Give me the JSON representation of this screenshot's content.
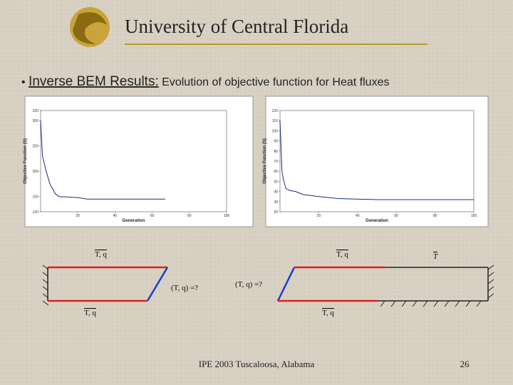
{
  "header": {
    "title": "University of Central Florida"
  },
  "bullet": {
    "lead": "Inverse BEM Results:",
    "text": "Evolution of objective function for Heat fluxes"
  },
  "chart_data": [
    {
      "type": "line",
      "xlabel": "Generation",
      "ylabel": "Objective Function (S)",
      "x": [
        0,
        1,
        2,
        3,
        5,
        8,
        10,
        15,
        20,
        25,
        40,
        60,
        67
      ],
      "series": [
        {
          "color": "#1c2a80",
          "values": [
            300,
            230,
            215,
            200,
            175,
            155,
            150,
            149,
            148,
            145,
            145,
            145,
            145
          ]
        }
      ],
      "xlim": [
        0,
        100
      ],
      "xticks": [
        20,
        40,
        60,
        80,
        100
      ],
      "ylim": [
        120,
        320
      ],
      "yticks": [
        120,
        150,
        200,
        250,
        300,
        320
      ]
    },
    {
      "type": "line",
      "xlabel": "Generation",
      "ylabel": "Objective Function (S)",
      "x": [
        0,
        1,
        2,
        3,
        5,
        8,
        12,
        20,
        30,
        50,
        100
      ],
      "series": [
        {
          "color": "#1c2a80",
          "values": [
            110,
            60,
            50,
            43,
            41,
            40,
            37,
            35,
            33,
            32,
            32
          ]
        }
      ],
      "xlim": [
        0,
        100
      ],
      "xticks": [
        20,
        40,
        60,
        80,
        100
      ],
      "ylim": [
        20,
        120
      ],
      "yticks": [
        20,
        30,
        40,
        50,
        60,
        70,
        80,
        90,
        100,
        110,
        120
      ]
    }
  ],
  "diagram": {
    "labels": [
      "T, q",
      "T, q",
      "(T, q) =?",
      "(T, q) =?",
      "T, q",
      "T, q",
      "T"
    ]
  },
  "footer": {
    "text": "IPE 2003 Tuscaloosa, Alabama",
    "page": "26"
  }
}
